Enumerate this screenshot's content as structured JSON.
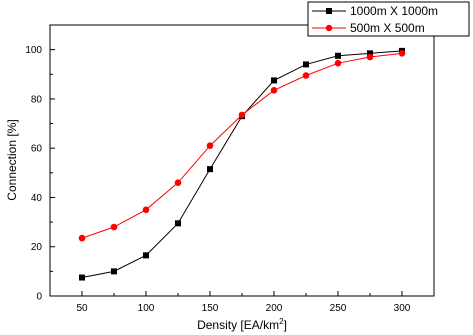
{
  "chart_data": {
    "type": "line",
    "title": "",
    "xlabel": "Density [EA/km",
    "xlabel_sup": "2",
    "xlabel_suffix": "]",
    "ylabel": "Connection [%]",
    "x": [
      50,
      75,
      100,
      125,
      150,
      175,
      200,
      225,
      250,
      275,
      300
    ],
    "xlim": [
      25,
      325
    ],
    "ylim": [
      0,
      110
    ],
    "xticks": [
      50,
      100,
      150,
      200,
      250,
      300
    ],
    "yticks": [
      0,
      20,
      40,
      60,
      80,
      100
    ],
    "grid": false,
    "legend_position": "top-right",
    "series": [
      {
        "name": "1000m X 1000m",
        "marker": "square",
        "color": "#000000",
        "values": [
          7.5,
          10,
          16.5,
          29.5,
          51.5,
          73,
          87.5,
          94,
          97.5,
          98.5,
          99.5
        ]
      },
      {
        "name": "500m X 500m",
        "marker": "circle",
        "color": "#ff0000",
        "values": [
          23.5,
          28,
          35,
          46,
          61,
          73.5,
          83.5,
          89.5,
          94.5,
          97,
          98.5
        ]
      }
    ]
  }
}
